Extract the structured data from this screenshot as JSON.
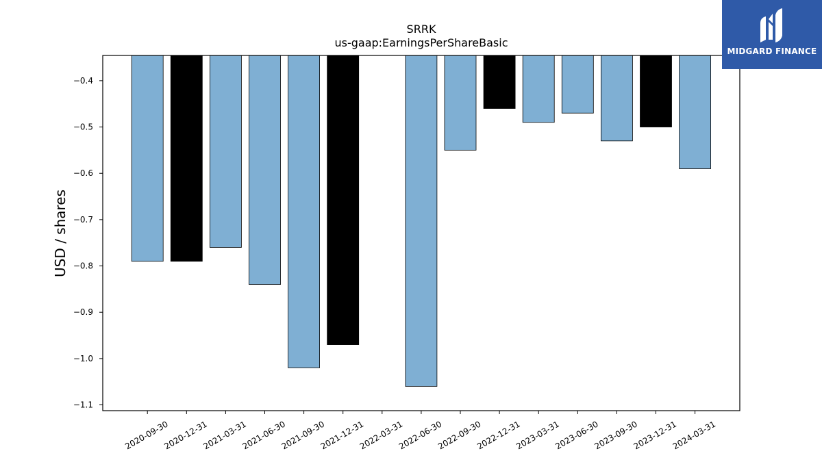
{
  "brand": {
    "name": "MIDGARD FINANCE",
    "background": "#2f5aa8"
  },
  "chart_data": {
    "type": "bar",
    "title": "SRRK",
    "subtitle": "us-gaap:EarningsPerShareBasic",
    "xlabel": "",
    "ylabel": "USD / shares",
    "ylim": [
      -1.1125,
      -0.3455
    ],
    "yticks": [
      -0.4,
      -0.5,
      -0.6,
      -0.7,
      -0.8,
      -0.9,
      -1.0,
      -1.1
    ],
    "ytick_labels": [
      "−0.4",
      "−0.5",
      "−0.6",
      "−0.7",
      "−0.8",
      "−0.9",
      "−1.0",
      "−1.1"
    ],
    "categories": [
      "2020-09-30",
      "2020-12-31",
      "2021-03-31",
      "2021-06-30",
      "2021-09-30",
      "2021-12-31",
      "2022-03-31",
      "2022-06-30",
      "2022-09-30",
      "2022-12-31",
      "2023-03-31",
      "2023-06-30",
      "2023-09-30",
      "2023-12-31",
      "2024-03-31"
    ],
    "values": [
      -0.79,
      -0.79,
      -0.76,
      -0.84,
      -1.02,
      -0.97,
      null,
      -1.06,
      -0.55,
      -0.46,
      -0.49,
      -0.47,
      -0.53,
      -0.5,
      -0.59
    ],
    "bar_colors": [
      "#7fafd3",
      "#000000",
      "#7fafd3",
      "#7fafd3",
      "#7fafd3",
      "#000000",
      "#7fafd3",
      "#7fafd3",
      "#7fafd3",
      "#000000",
      "#7fafd3",
      "#7fafd3",
      "#7fafd3",
      "#000000",
      "#7fafd3"
    ],
    "grid": false,
    "legend": "none"
  }
}
